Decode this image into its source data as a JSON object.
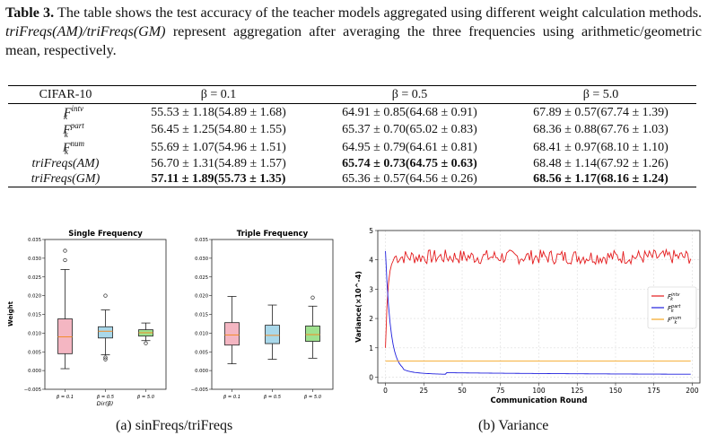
{
  "caption": {
    "label": "Table 3.",
    "text_1": "The table shows the test accuracy of the teacher models aggregated using different weight calculation methods.",
    "italic_1": "triFreqs(AM)/triFreqs(GM)",
    "text_2": "represent aggregation after averaging the three frequencies using arithmetic/geometric mean, respectively."
  },
  "table": {
    "header": [
      "CIFAR-10",
      "β = 0.1",
      "β = 0.5",
      "β = 5.0"
    ],
    "rows": [
      {
        "name": "F",
        "sup": "intv",
        "sub": "k",
        "cells": [
          "55.53 ± 1.18(54.89 ± 1.68)",
          "64.91 ± 0.85(64.68 ± 0.91)",
          "67.89 ± 0.57(67.74 ± 1.39)"
        ],
        "bold": [
          false,
          false,
          false
        ]
      },
      {
        "name": "F",
        "sup": "part",
        "sub": "k",
        "cells": [
          "56.45 ± 1.25(54.80 ± 1.55)",
          "65.37 ± 0.70(65.02 ± 0.83)",
          "68.36 ± 0.88(67.76 ± 1.03)"
        ],
        "bold": [
          false,
          false,
          false
        ]
      },
      {
        "name": "F",
        "sup": "num",
        "sub": "k",
        "cells": [
          "55.69 ± 1.07(54.96 ± 1.51)",
          "64.95 ± 0.79(64.61 ± 0.81)",
          "68.41 ± 0.97(68.10 ± 1.10)"
        ],
        "bold": [
          false,
          false,
          false
        ]
      },
      {
        "name": "triFreqs(AM)",
        "sup": "",
        "sub": "",
        "cells": [
          "56.70 ± 1.31(54.89 ± 1.57)",
          "65.74 ± 0.73(64.75 ± 0.63)",
          "68.48 ± 1.14(67.92 ± 1.26)"
        ],
        "bold": [
          false,
          true,
          false
        ]
      },
      {
        "name": "triFreqs(GM)",
        "sup": "",
        "sub": "",
        "cells": [
          "57.11 ± 1.89(55.73 ± 1.35)",
          "65.36 ± 0.57(64.56 ± 0.26)",
          "68.56 ± 1.17(68.16 ± 1.24)"
        ],
        "bold": [
          true,
          false,
          true
        ]
      }
    ]
  },
  "figure_a": {
    "sublabel": "(a) sinFreqs/triFreqs",
    "ylabel": "Weight",
    "xlabel": "Dir(β)"
  },
  "figure_b": {
    "sublabel": "(b) Variance"
  },
  "chart_data": [
    {
      "type": "box",
      "title": "Single Frequency",
      "ylabel": "Weight",
      "xlabel": "Dir(β)",
      "ylim": [
        -0.005,
        0.035
      ],
      "yticks": [
        "−0.005",
        "0.000",
        "0.005",
        "0.010",
        "0.015",
        "0.020",
        "0.025",
        "0.030",
        "0.035"
      ],
      "categories": [
        "β = 0.1",
        "β = 0.5",
        "β = 5.0"
      ],
      "boxes": [
        {
          "whislo": 0.0005,
          "q1": 0.0045,
          "med": 0.009,
          "q3": 0.0138,
          "whishi": 0.027,
          "fliers": [
            0.0295,
            0.032
          ],
          "color": "#f4b6c2"
        },
        {
          "whislo": 0.0042,
          "q1": 0.0087,
          "med": 0.0105,
          "q3": 0.0117,
          "whishi": 0.0162,
          "fliers": [
            0.0035,
            0.003,
            0.02
          ],
          "color": "#a9d8ea"
        },
        {
          "whislo": 0.008,
          "q1": 0.0092,
          "med": 0.0101,
          "q3": 0.0109,
          "whishi": 0.0127,
          "fliers": [
            0.0073
          ],
          "color": "#9fe18f"
        }
      ]
    },
    {
      "type": "box",
      "title": "Triple Frequency",
      "ylim": [
        -0.005,
        0.035
      ],
      "yticks": [
        "−0.005",
        "0.000",
        "0.005",
        "0.010",
        "0.015",
        "0.020",
        "0.025",
        "0.030",
        "0.035"
      ],
      "categories": [
        "β = 0.1",
        "β = 0.5",
        "β = 5.0"
      ],
      "boxes": [
        {
          "whislo": 0.0018,
          "q1": 0.0068,
          "med": 0.0095,
          "q3": 0.0128,
          "whishi": 0.0198,
          "fliers": [],
          "color": "#f4b6c2"
        },
        {
          "whislo": 0.003,
          "q1": 0.0072,
          "med": 0.0094,
          "q3": 0.0121,
          "whishi": 0.0175,
          "fliers": [],
          "color": "#a9d8ea"
        },
        {
          "whislo": 0.0033,
          "q1": 0.0078,
          "med": 0.0096,
          "q3": 0.0119,
          "whishi": 0.0172,
          "fliers": [
            0.0195
          ],
          "color": "#9fe18f"
        }
      ]
    },
    {
      "type": "line",
      "ylabel": "Variance(×10^-4)",
      "xlabel": "Communication Round",
      "xlim": [
        -5,
        205
      ],
      "ylim": [
        -0.2,
        5.0
      ],
      "xticks": [
        0,
        25,
        50,
        75,
        100,
        125,
        150,
        175,
        200
      ],
      "yticks": [
        0,
        1,
        2,
        3,
        4,
        5
      ],
      "grid": true,
      "legend": "center-right",
      "series": [
        {
          "name": "F_k^intv",
          "color": "#e41a1c",
          "shape": "rise",
          "start": 1.0,
          "plateau": 4.1,
          "noise": 0.25
        },
        {
          "name": "F_k^part",
          "color": "#1f1fdd",
          "shape": "decay",
          "start": 4.0,
          "end": 0.08
        },
        {
          "name": "F_k^num",
          "color": "#f5a623",
          "shape": "flat",
          "value": 0.55
        }
      ]
    }
  ]
}
